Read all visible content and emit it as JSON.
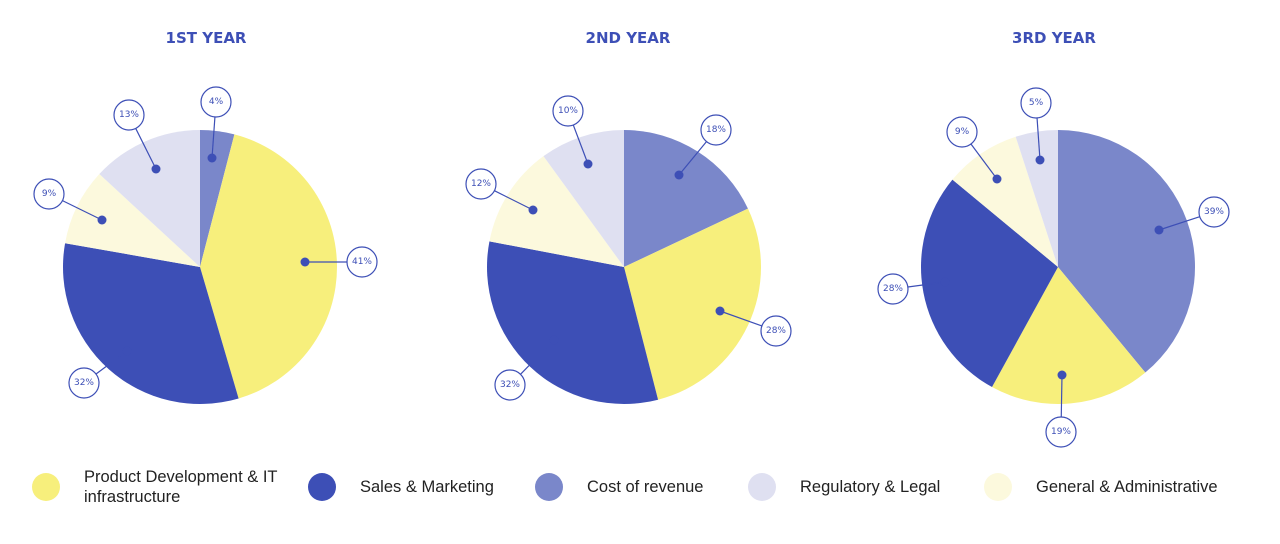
{
  "colors": {
    "product_dev": "#f7ef7c",
    "sales": "#3d4fb6",
    "cost": "#7a87ca",
    "regulatory": "#dfe0f1",
    "general": "#fcf9dd",
    "accent": "#3d4fb6"
  },
  "legend": [
    {
      "key": "product_dev",
      "label": "Product Development & IT infrastructure"
    },
    {
      "key": "sales",
      "label": "Sales & Marketing"
    },
    {
      "key": "cost",
      "label": "Cost of revenue"
    },
    {
      "key": "regulatory",
      "label": "Regulatory & Legal"
    },
    {
      "key": "general",
      "label": "General & Administrative"
    }
  ],
  "chart_data": [
    {
      "type": "pie",
      "title": "1ST YEAR",
      "slices": [
        {
          "key": "cost",
          "value": 4,
          "label": "4%"
        },
        {
          "key": "product_dev",
          "value": 41,
          "label": "41%"
        },
        {
          "key": "sales",
          "value": 32,
          "label": "32%"
        },
        {
          "key": "general",
          "value": 9,
          "label": "9%"
        },
        {
          "key": "regulatory",
          "value": 13,
          "label": "13%"
        }
      ]
    },
    {
      "type": "pie",
      "title": "2ND YEAR",
      "slices": [
        {
          "key": "cost",
          "value": 18,
          "label": "18%"
        },
        {
          "key": "product_dev",
          "value": 28,
          "label": "28%"
        },
        {
          "key": "sales",
          "value": 32,
          "label": "32%"
        },
        {
          "key": "general",
          "value": 12,
          "label": "12%"
        },
        {
          "key": "regulatory",
          "value": 10,
          "label": "10%"
        }
      ]
    },
    {
      "type": "pie",
      "title": "3RD YEAR",
      "slices": [
        {
          "key": "cost",
          "value": 39,
          "label": "39%"
        },
        {
          "key": "product_dev",
          "value": 19,
          "label": "19%"
        },
        {
          "key": "sales",
          "value": 28,
          "label": "28%"
        },
        {
          "key": "general",
          "value": 9,
          "label": "9%"
        },
        {
          "key": "regulatory",
          "value": 5,
          "label": "5%"
        }
      ]
    }
  ]
}
